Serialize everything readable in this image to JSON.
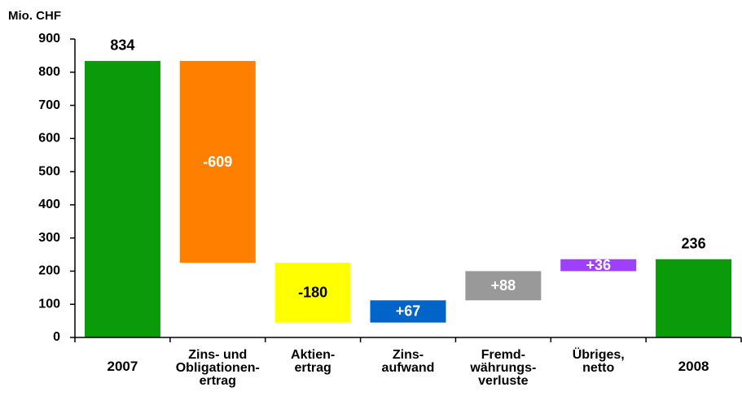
{
  "chart_data": {
    "type": "waterfall",
    "y_axis_label": "Mio. CHF",
    "categories": [
      [
        "2007"
      ],
      [
        "Zins- und",
        "Obligationen-",
        "ertrag"
      ],
      [
        "Aktien-",
        "ertrag"
      ],
      [
        "Zins-",
        "aufwand"
      ],
      [
        "Fremd-",
        "währungs-",
        "verluste"
      ],
      [
        "Übriges,",
        "netto"
      ],
      [
        "2008"
      ]
    ],
    "measure": [
      "total",
      "relative",
      "relative",
      "relative",
      "relative",
      "relative",
      "total"
    ],
    "values": [
      834,
      -609,
      -180,
      67,
      88,
      36,
      236
    ],
    "value_labels": [
      "834",
      "-609",
      "-180",
      "+67",
      "+88",
      "+36",
      "236"
    ],
    "colors": [
      "#0a9a0a",
      "#ff8000",
      "#ffff00",
      "#0064c8",
      "#999999",
      "#a040ff",
      "#0a9a0a"
    ],
    "label_colors": [
      "#000000",
      "#ffffff",
      "#000000",
      "#ffffff",
      "#ffffff",
      "#ffffff",
      "#000000"
    ],
    "ylim": [
      0,
      900
    ],
    "yticks": [
      0,
      100,
      200,
      300,
      400,
      500,
      600,
      700,
      800,
      900
    ],
    "grid": false
  }
}
